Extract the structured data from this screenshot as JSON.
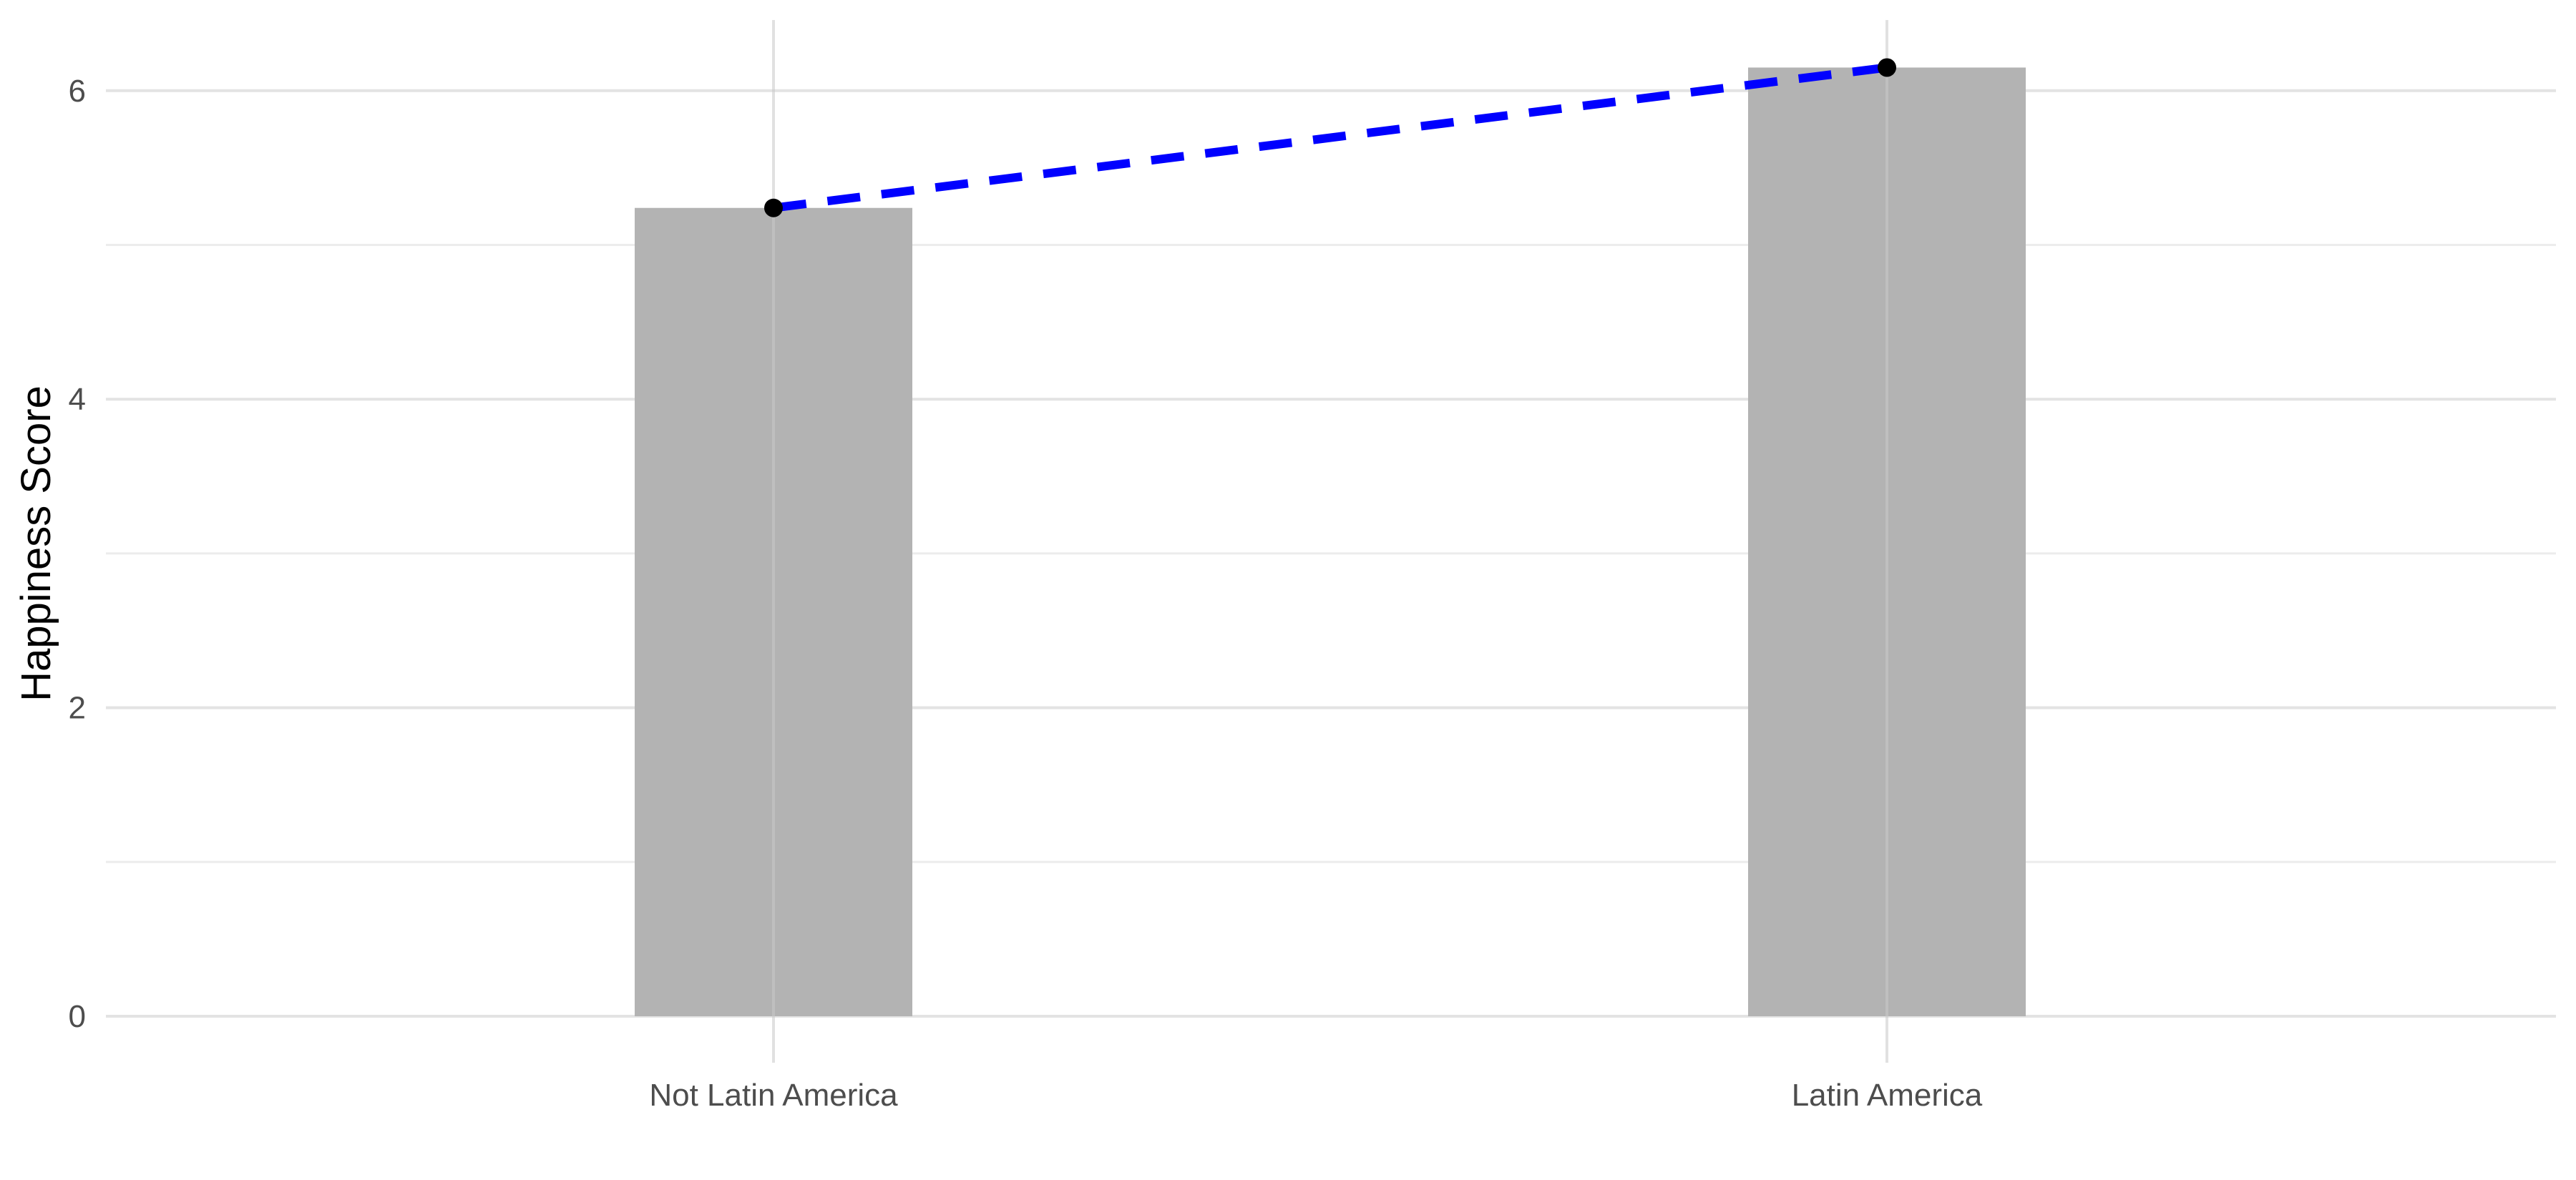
{
  "chart_data": {
    "type": "bar",
    "title": "",
    "xlabel": "",
    "ylabel": "Happiness Score",
    "categories": [
      "Not Latin America",
      "Latin America"
    ],
    "values": [
      5.24,
      6.15
    ],
    "ylim": [
      0,
      6.3
    ],
    "yticks": [
      0,
      2,
      4,
      6
    ],
    "grid": true,
    "overlay": {
      "type": "line",
      "style": "dashed",
      "markers": true,
      "values": [
        5.24,
        6.15
      ]
    },
    "colors": {
      "bar": "#b3b3b3",
      "line": "#0000ff",
      "point": "#000000",
      "grid_major": "#e3e3e3",
      "grid_minor": "#ececec"
    }
  }
}
